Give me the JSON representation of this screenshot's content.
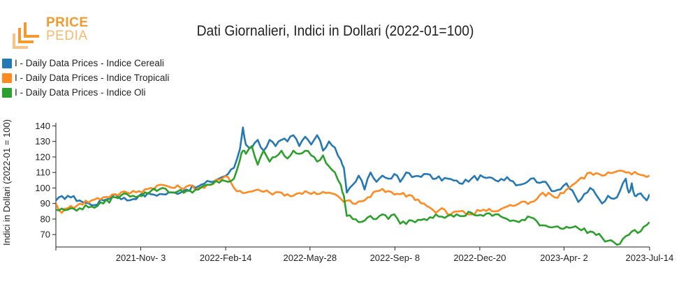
{
  "brand": {
    "line1": "PRICE",
    "line2": "PEDIA"
  },
  "colors": {
    "cereali": "#2478b4",
    "tropicali": "#ff8a1f",
    "oli": "#2ca02c",
    "logo_dark": "#f29a2e",
    "logo_light": "#f6c48a"
  },
  "chart_data": {
    "type": "line",
    "title": "Dati Giornalieri, Indici in Dollari (2022-01=100)",
    "xlabel": "",
    "ylabel": "Indici in Dollari (2022-01 = 100)",
    "ylim": [
      62,
      142
    ],
    "yticks": [
      70,
      80,
      90,
      100,
      110,
      120,
      130,
      140
    ],
    "ytick_labels": [
      "70",
      "80",
      "90",
      "100",
      "110",
      "120",
      "130",
      "140"
    ],
    "x_range": [
      0,
      100
    ],
    "xticks": [
      14.3,
      28.6,
      42.8,
      57.1,
      71.4,
      85.6,
      100
    ],
    "xtick_labels": [
      "2021-Nov- 3",
      "2022-Feb-14",
      "2022-May-28",
      "2022-Sep- 8",
      "2022-Dec-20",
      "2023-Apr- 2",
      "2023-Jul-14"
    ],
    "legend_position": "top-left",
    "grid": false,
    "series": [
      {
        "name": "I - Daily Data Prices - Indice Cereali",
        "color": "#2478b4",
        "x": [
          0,
          2,
          4,
          6,
          8,
          10,
          12,
          14,
          16,
          18,
          20,
          22,
          24,
          26,
          28,
          29,
          30,
          31,
          31.5,
          32,
          33,
          34,
          35,
          36,
          37,
          38,
          39,
          40,
          41,
          42,
          43,
          44,
          45,
          46,
          47,
          48,
          48.5,
          49,
          50,
          51,
          52,
          53,
          54,
          55,
          56,
          57,
          58,
          59,
          60,
          62,
          64,
          66,
          68,
          70,
          72,
          74,
          76,
          78,
          80,
          82,
          84,
          86,
          88,
          90,
          92,
          93,
          94,
          95,
          96,
          96.5,
          97,
          97.5,
          98,
          99,
          99.5,
          100
        ],
        "values": [
          92,
          95,
          92,
          89,
          92,
          96,
          92,
          95,
          96,
          96,
          97,
          99,
          101,
          104,
          107,
          109,
          113,
          125,
          139,
          128,
          126,
          131,
          124,
          131,
          127,
          131,
          130,
          134,
          127,
          133,
          128,
          134,
          124,
          130,
          126,
          118,
          113,
          97,
          102,
          108,
          99,
          110,
          104,
          108,
          106,
          109,
          104,
          110,
          107,
          109,
          106,
          106,
          103,
          106,
          107,
          105,
          107,
          102,
          106,
          104,
          98,
          103,
          91,
          100,
          90,
          95,
          93,
          98,
          106,
          97,
          103,
          95,
          96,
          94,
          92,
          96
        ]
      },
      {
        "name": "I - Daily Data Prices - Indice Tropicali",
        "color": "#ff8a1f",
        "x": [
          0,
          1,
          2,
          4,
          6,
          8,
          10,
          12,
          14,
          16,
          18,
          20,
          22,
          24,
          26,
          28,
          29,
          30,
          32,
          34,
          36,
          38,
          40,
          42,
          44,
          46,
          48,
          50,
          52,
          54,
          56,
          58,
          60,
          62,
          64,
          65,
          66,
          68,
          70,
          72,
          74,
          76,
          78,
          80,
          82,
          84,
          86,
          88,
          90,
          92,
          94,
          96,
          98,
          100
        ],
        "values": [
          90,
          84,
          87,
          90,
          92,
          94,
          96,
          97,
          98,
          100,
          102,
          100,
          101,
          100,
          102,
          106,
          107,
          100,
          97,
          99,
          97,
          97,
          95,
          98,
          96,
          97,
          93,
          90,
          92,
          98,
          98,
          96,
          95,
          90,
          84,
          87,
          83,
          85,
          83,
          86,
          85,
          88,
          90,
          91,
          97,
          94,
          99,
          105,
          110,
          108,
          110,
          110,
          109,
          108
        ]
      },
      {
        "name": "I - Daily Data Prices - Indice Oli",
        "color": "#2ca02c",
        "x": [
          0,
          2,
          4,
          6,
          8,
          10,
          12,
          14,
          16,
          18,
          20,
          22,
          24,
          26,
          28,
          29,
          30,
          31,
          31.5,
          32,
          33,
          34,
          35,
          36,
          37,
          38,
          39,
          40,
          41,
          42,
          43,
          44,
          45,
          46,
          47,
          48,
          48.5,
          49,
          50,
          51,
          52,
          53,
          54,
          55,
          56,
          57,
          58,
          60,
          62,
          64,
          66,
          68,
          70,
          72,
          74,
          76,
          78,
          80,
          82,
          84,
          86,
          88,
          90,
          92,
          93,
          94,
          95,
          96,
          97,
          98,
          99,
          100
        ],
        "values": [
          86,
          86,
          87,
          88,
          90,
          94,
          96,
          95,
          98,
          100,
          97,
          98,
          99,
          102,
          105,
          104,
          106,
          118,
          124,
          122,
          127,
          115,
          124,
          117,
          120,
          124,
          119,
          124,
          122,
          124,
          121,
          117,
          121,
          114,
          110,
          102,
          95,
          82,
          80,
          78,
          79,
          82,
          80,
          83,
          80,
          83,
          77,
          79,
          80,
          83,
          82,
          82,
          84,
          82,
          83,
          80,
          78,
          81,
          76,
          75,
          75,
          74,
          72,
          68,
          66,
          65,
          64,
          69,
          72,
          71,
          75,
          78
        ]
      }
    ]
  }
}
